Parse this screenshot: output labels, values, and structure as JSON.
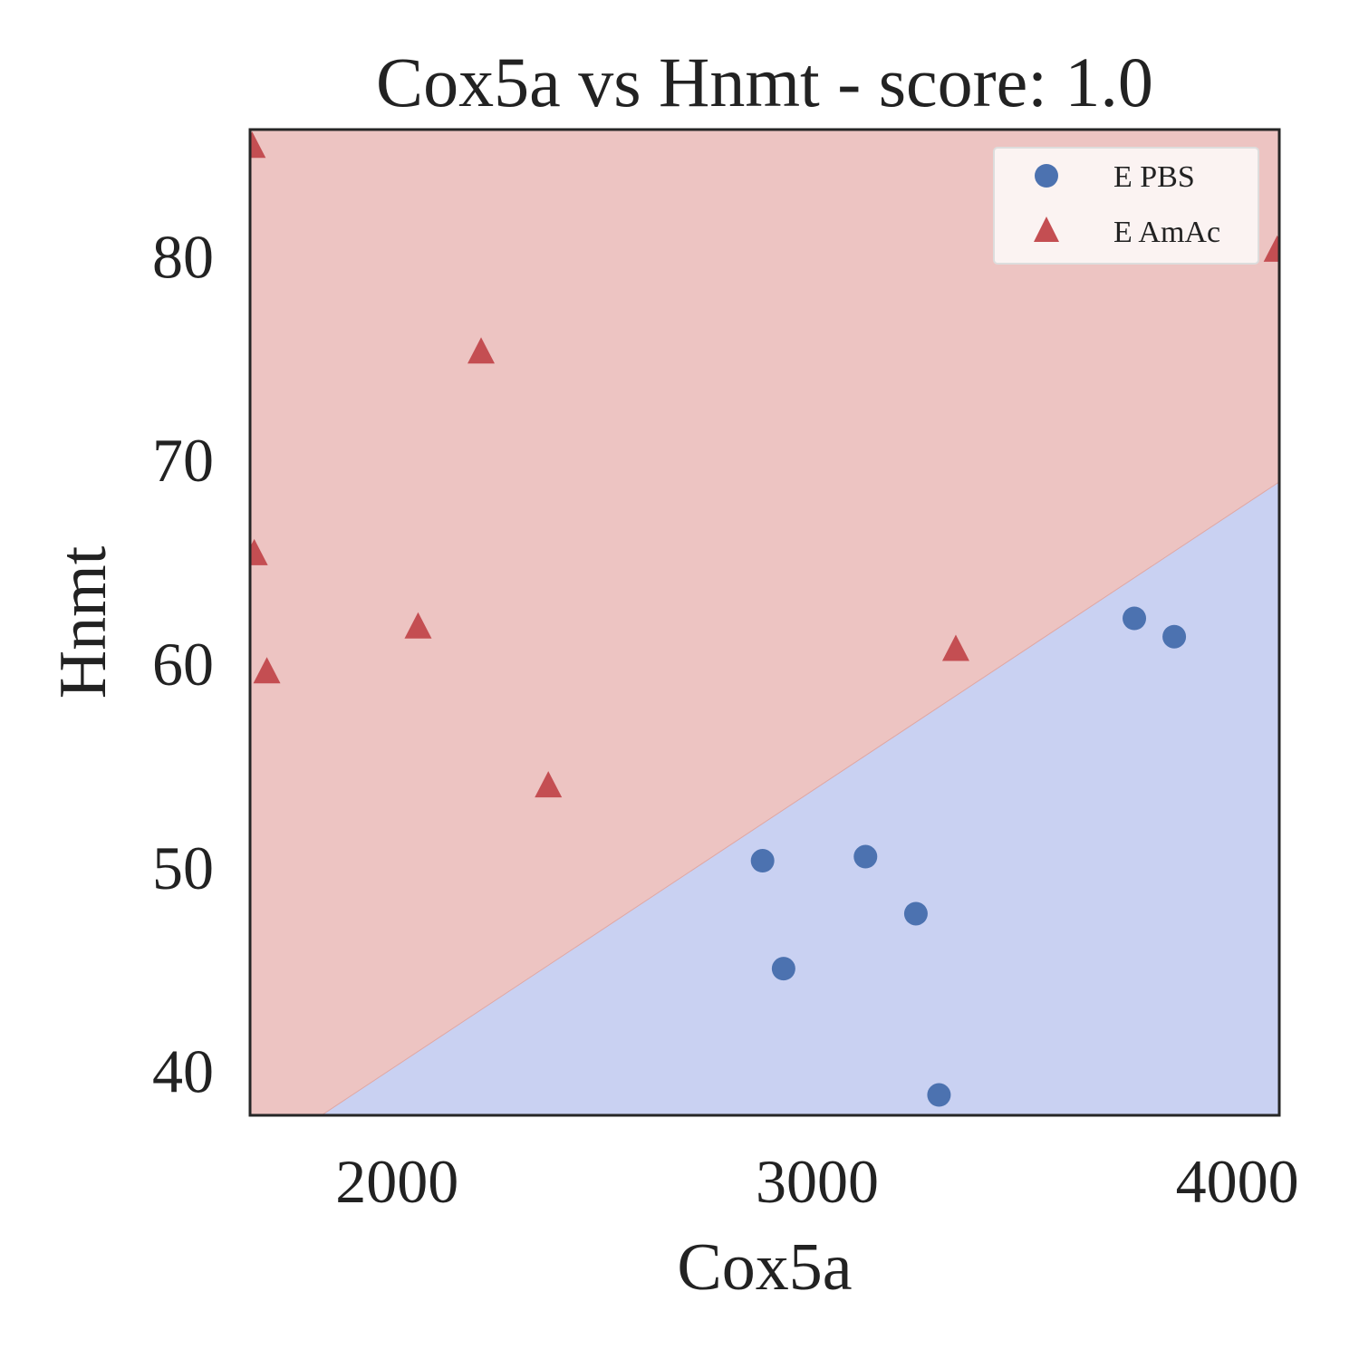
{
  "chart_data": {
    "type": "scatter",
    "title": "Cox5a vs Hnmt - score: 1.0",
    "xlabel": "Cox5a",
    "ylabel": "Hnmt",
    "xlim": [
      1650,
      4100
    ],
    "ylim": [
      37.8,
      86.2
    ],
    "x_ticks": [
      2000,
      3000,
      4000
    ],
    "y_ticks": [
      40,
      50,
      60,
      70,
      80
    ],
    "grid": false,
    "legend_position": "top-right",
    "decision_boundary": {
      "points": [
        [
          1820,
          37.8
        ],
        [
          4100,
          68.9
        ]
      ],
      "region_above_color": "#edc4c2",
      "region_below_color": "#c9d1f2",
      "line_color": "#e0a7a3"
    },
    "series": [
      {
        "name": "E PBS",
        "marker": "circle",
        "color": "#4c72b0",
        "points": [
          [
            2870,
            50.3
          ],
          [
            3115,
            50.5
          ],
          [
            3235,
            47.7
          ],
          [
            2920,
            45.0
          ],
          [
            3290,
            38.8
          ],
          [
            3755,
            62.2
          ],
          [
            3850,
            61.3
          ]
        ]
      },
      {
        "name": "E AmAc",
        "marker": "triangle",
        "color": "#c44e52",
        "points": [
          [
            1655,
            85.3
          ],
          [
            1660,
            65.3
          ],
          [
            1690,
            59.5
          ],
          [
            2050,
            61.7
          ],
          [
            2200,
            75.2
          ],
          [
            2360,
            53.9
          ],
          [
            3330,
            60.6
          ],
          [
            4095,
            80.2
          ]
        ]
      }
    ]
  }
}
